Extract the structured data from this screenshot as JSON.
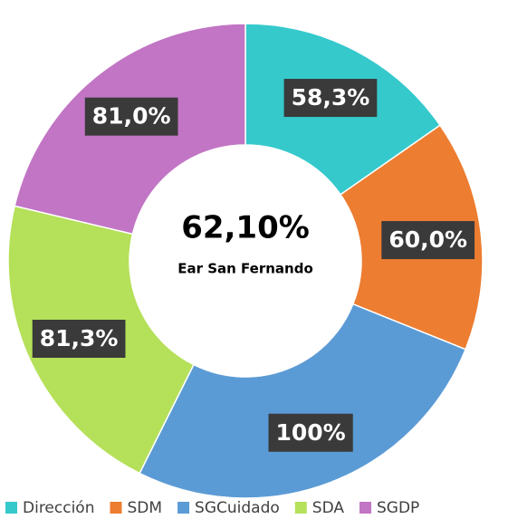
{
  "chart_data": {
    "type": "donut",
    "categories": [
      "Dirección",
      "SDM",
      "SGCuidado",
      "SDA",
      "SGDP"
    ],
    "values": [
      58.3,
      60.0,
      100,
      81.3,
      81.0
    ],
    "value_labels": [
      "58,3%",
      "60,0%",
      "100%",
      "81,3%",
      "81,0%"
    ],
    "colors": [
      "#35c9cc",
      "#ed7d31",
      "#5b9bd5",
      "#b5e05a",
      "#c275c4"
    ],
    "annotations": [
      "62,10%",
      "Ear San Fernando"
    ],
    "legend": "bottom"
  }
}
